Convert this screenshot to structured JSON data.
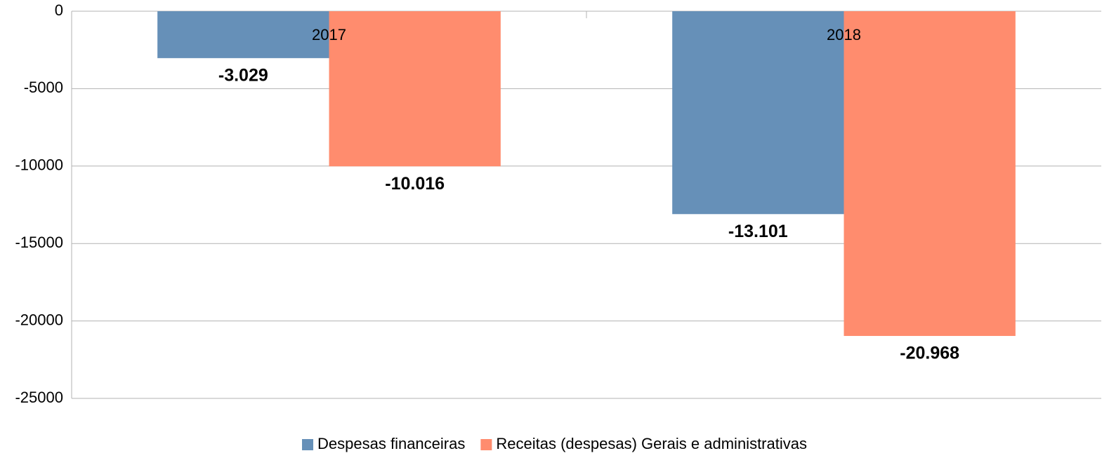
{
  "chart_data": {
    "type": "bar",
    "categories": [
      "2017",
      "2018"
    ],
    "series": [
      {
        "name": "Despesas financeiras",
        "color": "#6690b8",
        "values": [
          -3029,
          -13101
        ],
        "value_labels": [
          "-3.029",
          "-13.101"
        ]
      },
      {
        "name": "Receitas (despesas) Gerais e administrativas",
        "color": "#ff8c6e",
        "values": [
          -10016,
          -20968
        ],
        "value_labels": [
          "-10.016",
          "-20.968"
        ]
      }
    ],
    "ylim": [
      -25000,
      0
    ],
    "yticks": [
      0,
      -5000,
      -10000,
      -15000,
      -20000,
      -25000
    ],
    "grid": true
  }
}
